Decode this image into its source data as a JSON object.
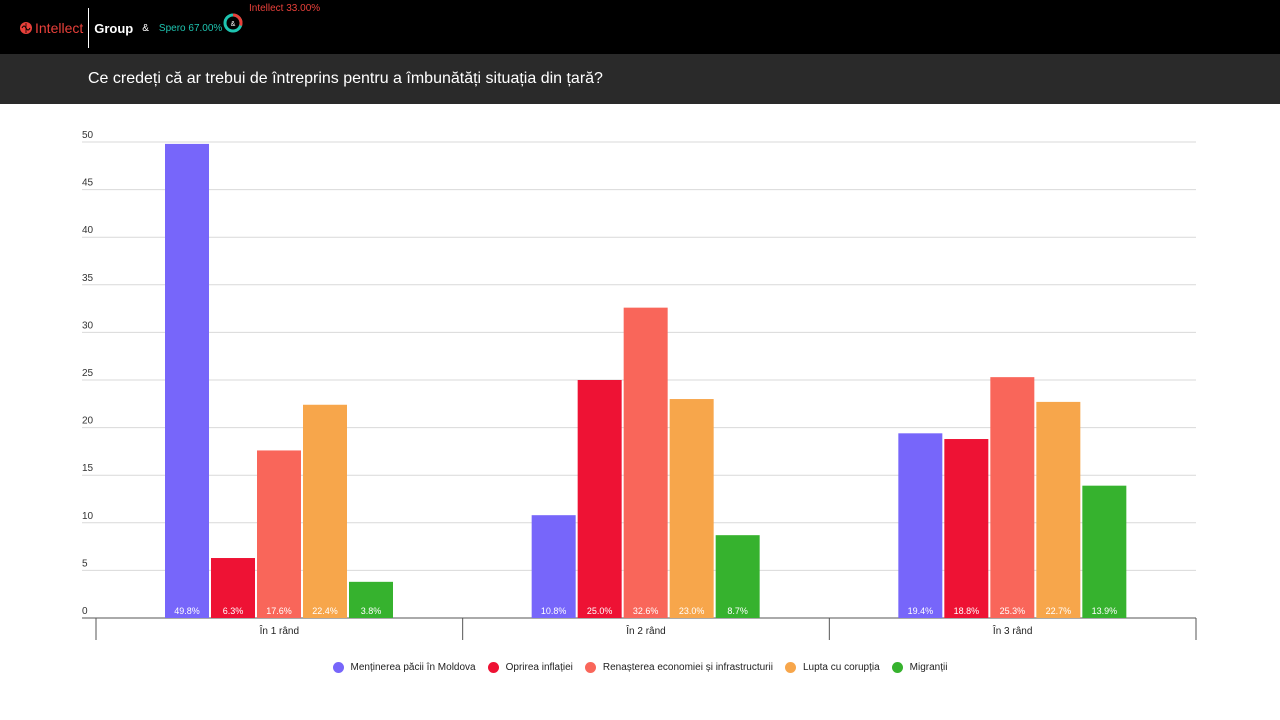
{
  "header": {
    "brand_intellect": "Intellect",
    "brand_group": "Group",
    "brand_amp": "&",
    "brand_spero_share": "Spero 67.00%",
    "brand_intellect_share": "Intellect 33.00%",
    "ring_symbol": "&",
    "colors": {
      "intellect": "#e8403a",
      "spero": "#1ec4b0"
    }
  },
  "title": "Ce credeți că ar trebui de întreprins pentru a îmbunătăți situația din țară?",
  "chart_data": {
    "type": "bar",
    "title": "Ce credeți că ar trebui de întreprins pentru a îmbunătăți situația din țară?",
    "xlabel": "",
    "ylabel": "",
    "ylim": [
      0,
      50
    ],
    "yticks": [
      0,
      5,
      10,
      15,
      20,
      25,
      30,
      35,
      40,
      45,
      50
    ],
    "grid": true,
    "legend_position": "bottom",
    "categories": [
      "În 1 rând",
      "În 2 rând",
      "În 3 rând"
    ],
    "series": [
      {
        "name": "Menținerea păcii în Moldova",
        "color": "#7766fa",
        "values": [
          49.8,
          10.8,
          19.4
        ],
        "labels": [
          "49.8%",
          "10.8%",
          "19.4%"
        ]
      },
      {
        "name": "Oprirea inflației",
        "color": "#ee1234",
        "values": [
          6.3,
          25.0,
          18.8
        ],
        "labels": [
          "6.3%",
          "25.0%",
          "18.8%"
        ]
      },
      {
        "name": "Renașterea economiei și infrastructurii",
        "color": "#f9665a",
        "values": [
          17.6,
          32.6,
          25.3
        ],
        "labels": [
          "17.6%",
          "32.6%",
          "25.3%"
        ]
      },
      {
        "name": "Lupta cu corupția",
        "color": "#f7a64b",
        "values": [
          22.4,
          23.0,
          22.7
        ],
        "labels": [
          "22.4%",
          "23.0%",
          "22.7%"
        ]
      },
      {
        "name": "Migranții",
        "color": "#36b22e",
        "values": [
          3.8,
          8.7,
          13.9
        ],
        "labels": [
          "3.8%",
          "8.7%",
          "13.9%"
        ]
      }
    ]
  }
}
